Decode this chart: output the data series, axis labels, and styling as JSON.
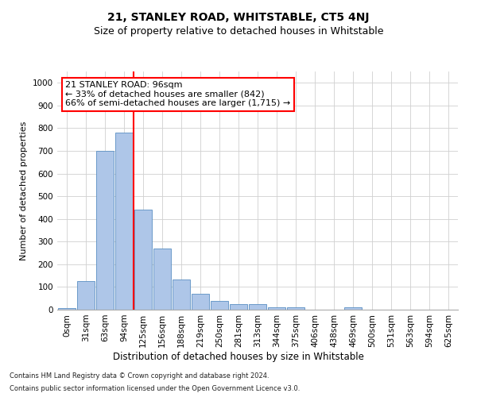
{
  "title": "21, STANLEY ROAD, WHITSTABLE, CT5 4NJ",
  "subtitle": "Size of property relative to detached houses in Whitstable",
  "xlabel": "Distribution of detached houses by size in Whitstable",
  "ylabel": "Number of detached properties",
  "bar_labels": [
    "0sqm",
    "31sqm",
    "63sqm",
    "94sqm",
    "125sqm",
    "156sqm",
    "188sqm",
    "219sqm",
    "250sqm",
    "281sqm",
    "313sqm",
    "344sqm",
    "375sqm",
    "406sqm",
    "438sqm",
    "469sqm",
    "500sqm",
    "531sqm",
    "563sqm",
    "594sqm",
    "625sqm"
  ],
  "bar_values": [
    8,
    125,
    700,
    780,
    440,
    270,
    133,
    70,
    40,
    25,
    25,
    12,
    12,
    0,
    0,
    10,
    0,
    0,
    0,
    0,
    0
  ],
  "bar_color": "#aec6e8",
  "bar_edge_color": "#5a8fc2",
  "grid_color": "#d0d0d0",
  "vline_color": "red",
  "vline_x_position": 3.5,
  "annotation_text_line1": "21 STANLEY ROAD: 96sqm",
  "annotation_text_line2": "← 33% of detached houses are smaller (842)",
  "annotation_text_line3": "66% of semi-detached houses are larger (1,715) →",
  "annotation_box_color": "white",
  "annotation_box_edge": "red",
  "ylim": [
    0,
    1050
  ],
  "yticks": [
    0,
    100,
    200,
    300,
    400,
    500,
    600,
    700,
    800,
    900,
    1000
  ],
  "footnote1": "Contains HM Land Registry data © Crown copyright and database right 2024.",
  "footnote2": "Contains public sector information licensed under the Open Government Licence v3.0.",
  "title_fontsize": 10,
  "subtitle_fontsize": 9,
  "xlabel_fontsize": 8.5,
  "ylabel_fontsize": 8,
  "tick_fontsize": 7.5,
  "annotation_fontsize": 8,
  "footnote_fontsize": 6
}
